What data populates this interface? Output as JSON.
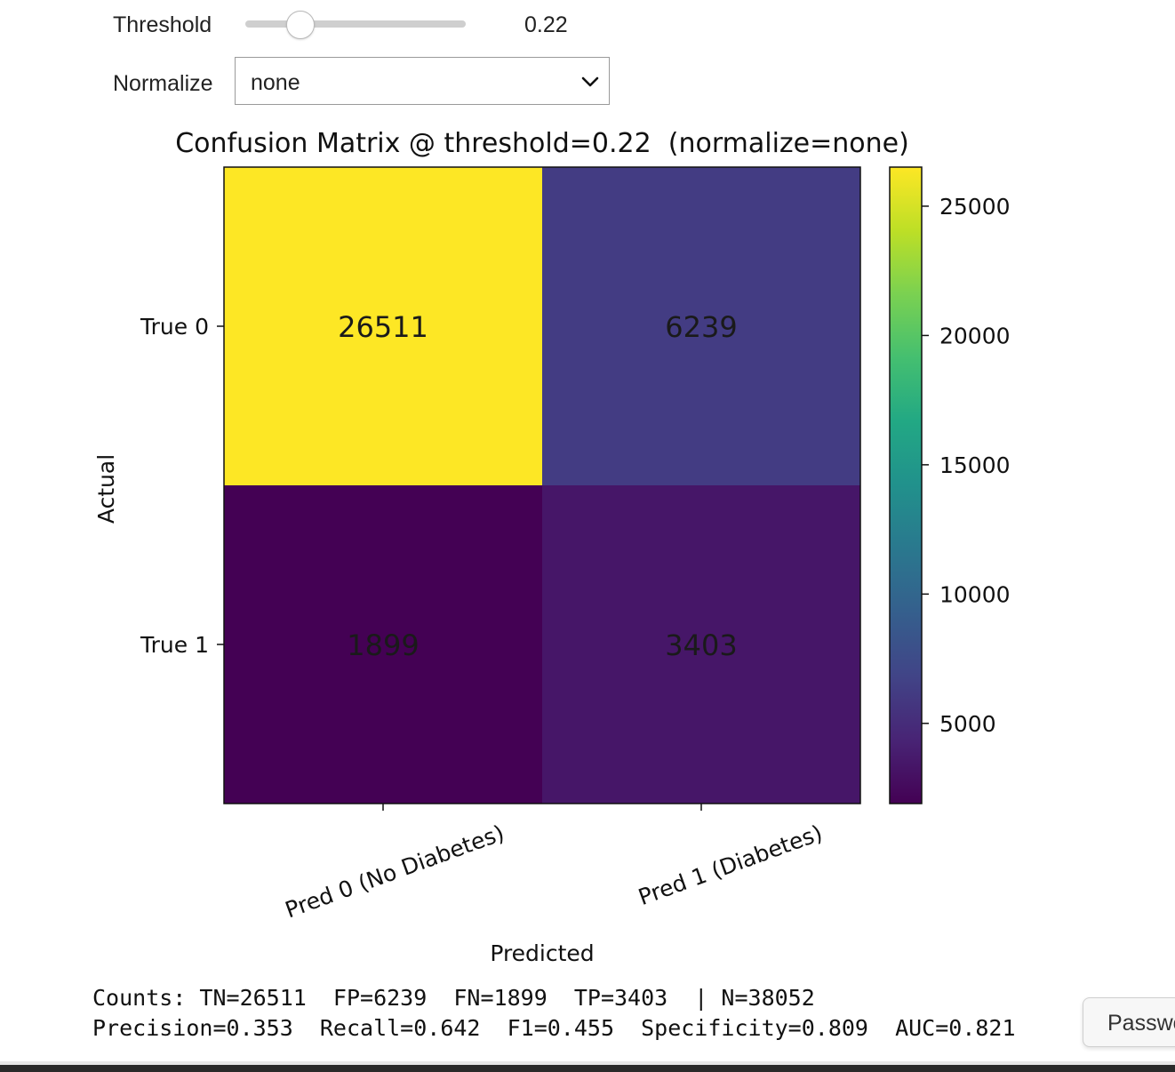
{
  "controls": {
    "threshold": {
      "label": "Threshold",
      "value": 0.22,
      "display": "0.22",
      "min": 0,
      "max": 1
    },
    "normalize": {
      "label": "Normalize",
      "selected": "none"
    }
  },
  "chart_data": {
    "type": "heatmap",
    "title": "Confusion Matrix @ threshold=0.22  (normalize=none)",
    "xlabel": "Predicted",
    "ylabel": "Actual",
    "x_categories": [
      "Pred 0 (No Diabetes)",
      "Pred 1 (Diabetes)"
    ],
    "y_categories": [
      "True 0",
      "True 1"
    ],
    "values": [
      [
        26511,
        6239
      ],
      [
        1899,
        3403
      ]
    ],
    "colormap": "viridis",
    "colorbar": {
      "ticks": [
        5000,
        10000,
        15000,
        20000,
        25000
      ],
      "range": [
        1899,
        26511
      ]
    }
  },
  "metrics": {
    "line1": "Counts: TN=26511  FP=6239  FN=1899  TP=3403  | N=38052",
    "line2": "Precision=0.353  Recall=0.642  F1=0.455  Specificity=0.809  AUC=0.821"
  },
  "password_tab": {
    "label": "Password"
  }
}
